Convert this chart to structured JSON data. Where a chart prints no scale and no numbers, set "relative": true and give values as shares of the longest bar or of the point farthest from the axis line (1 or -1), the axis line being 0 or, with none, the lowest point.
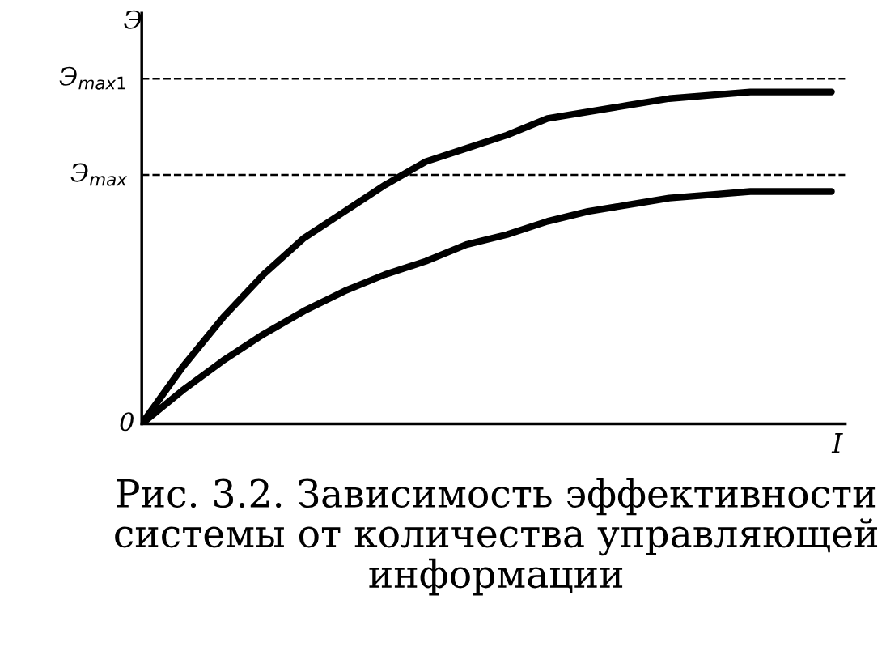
{
  "chart_data": {
    "type": "line",
    "title": "Рис. 3.2. Зависимость эффективности системы от количества управляющей информации",
    "ylabel": "Э",
    "xlabel": "I",
    "relative": true,
    "categories": [
      null,
      null,
      null,
      null,
      null,
      null,
      null,
      null,
      null,
      null,
      null,
      null,
      null,
      null,
      null,
      null,
      null,
      null
    ],
    "series": [
      {
        "color": "#000000",
        "values": [
          0,
          0.17,
          0.32,
          0.45,
          0.56,
          0.64,
          0.72,
          0.79,
          0.83,
          0.87,
          0.92,
          0.94,
          0.96,
          0.98,
          0.99,
          1.0,
          1.0,
          1.0
        ]
      },
      {
        "color": "#000000",
        "values": [
          0,
          0.1,
          0.19,
          0.27,
          0.34,
          0.4,
          0.45,
          0.49,
          0.54,
          0.57,
          0.61,
          0.64,
          0.66,
          0.68,
          0.69,
          0.7,
          0.7,
          0.7
        ]
      }
    ],
    "ref_lines": [
      {
        "axis": "y",
        "value": 1.04,
        "label": "Э$_{max1}$",
        "color": "#000000",
        "line_style": "dashed"
      },
      {
        "axis": "y",
        "value": 0.75,
        "label": "Э$_{max}$",
        "color": "#000000",
        "line_style": "dashed"
      }
    ],
    "annotations": [
      "0"
    ],
    "marker": "none",
    "line_style": "solid"
  }
}
